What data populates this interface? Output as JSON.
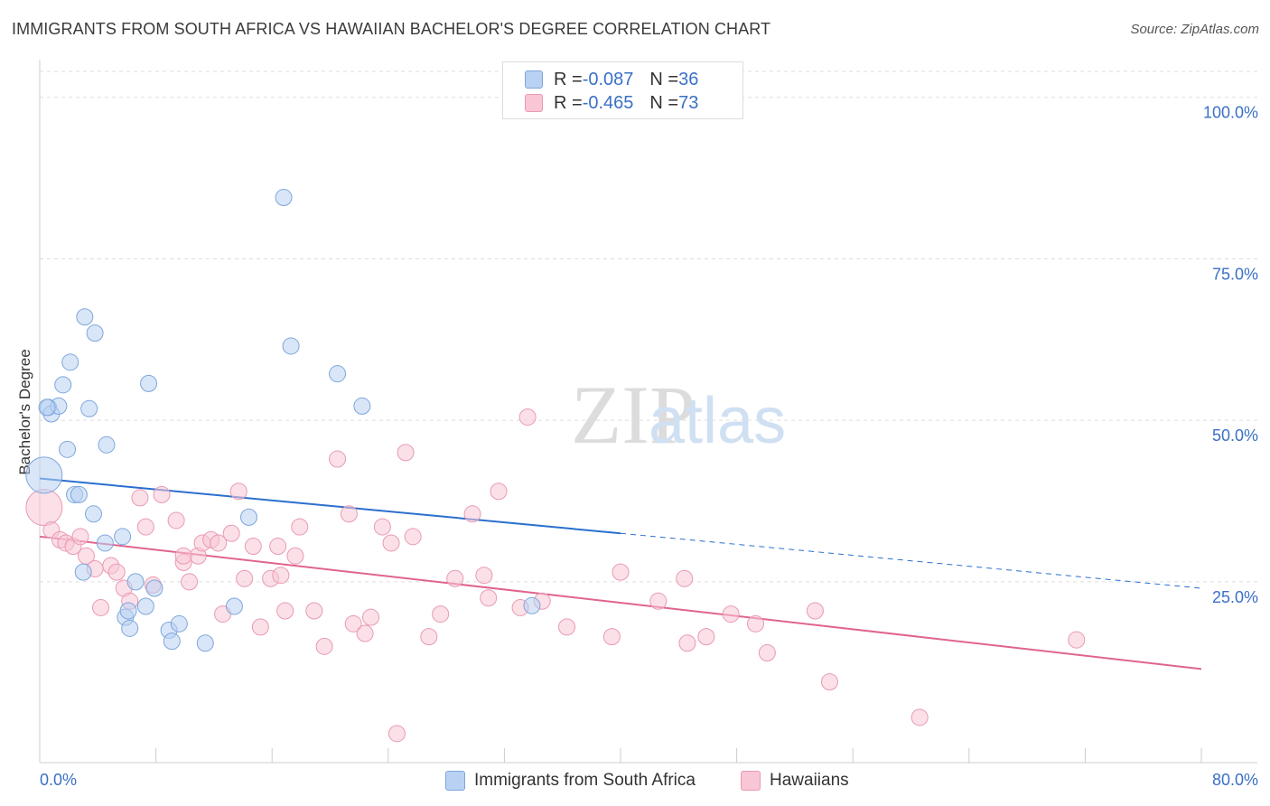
{
  "title": "IMMIGRANTS FROM SOUTH AFRICA VS HAWAIIAN BACHELOR'S DEGREE CORRELATION CHART",
  "source": "Source: ZipAtlas.com",
  "watermark": {
    "zip": "ZIP",
    "atlas": "atlas"
  },
  "colors": {
    "blue_fill": "#b9d2f3",
    "blue_stroke": "#7ea6dc",
    "blue_line": "#2b6fcf",
    "pink_fill": "#f8c6d5",
    "pink_stroke": "#e99ab3",
    "pink_line": "#e0648f",
    "axis_text": "#3a70c6",
    "grid": "#dddddd"
  },
  "legend": {
    "rows": [
      {
        "r_label": "R = ",
        "r_value": "-0.087",
        "n_label": "N = ",
        "n_value": "36"
      },
      {
        "r_label": "R = ",
        "r_value": "-0.465",
        "n_label": "N = ",
        "n_value": "73"
      }
    ]
  },
  "bottom_legend": [
    "Immigrants from South Africa",
    "Hawaiians"
  ],
  "chart_data": {
    "type": "scatter",
    "title": "IMMIGRANTS FROM SOUTH AFRICA VS HAWAIIAN BACHELOR'S DEGREE CORRELATION CHART",
    "xlabel": "",
    "ylabel": "Bachelor's Degree",
    "xlim": [
      0,
      80
    ],
    "ylim": [
      -3,
      105
    ],
    "x_tick_labels": [
      "0.0%",
      "80.0%"
    ],
    "y_ticks": [
      25,
      50,
      75,
      100
    ],
    "y_tick_labels": [
      "25.0%",
      "50.0%",
      "75.0%",
      "100.0%"
    ],
    "grid": true,
    "series": [
      {
        "name": "Immigrants from South Africa",
        "color": "blue",
        "trend": {
          "x0": 0,
          "y0": 41.0,
          "x1": 40,
          "y1": 32.5,
          "dash_to_x": 80,
          "dash_to_y": 24.0
        },
        "points": [
          [
            0.3,
            41.5,
            1
          ],
          [
            0.6,
            52.0,
            0.6
          ],
          [
            0.8,
            51.0,
            0.6
          ],
          [
            1.3,
            52.2,
            0.6
          ],
          [
            1.6,
            55.5,
            0.6
          ],
          [
            1.9,
            45.5,
            0.6
          ],
          [
            2.1,
            59.0,
            0.6
          ],
          [
            2.4,
            38.5,
            0.6
          ],
          [
            2.7,
            38.5,
            0.6
          ],
          [
            3.1,
            66.0,
            0.6
          ],
          [
            3.4,
            51.8,
            0.6
          ],
          [
            3.8,
            63.5,
            0.6
          ],
          [
            4.6,
            46.2,
            0.6
          ],
          [
            3.7,
            35.5,
            0.6
          ],
          [
            4.5,
            31.0,
            0.6
          ],
          [
            3.0,
            26.5,
            0.6
          ],
          [
            5.7,
            32.0,
            0.6
          ],
          [
            6.6,
            25.0,
            0.6
          ],
          [
            7.5,
            55.7,
            0.6
          ],
          [
            7.9,
            24.0,
            0.6
          ],
          [
            5.9,
            19.5,
            0.6
          ],
          [
            6.1,
            20.5,
            0.6
          ],
          [
            7.3,
            21.2,
            0.6
          ],
          [
            6.2,
            17.8,
            0.6
          ],
          [
            8.9,
            17.5,
            0.6
          ],
          [
            9.1,
            15.8,
            0.6
          ],
          [
            9.6,
            18.5,
            0.6
          ],
          [
            11.4,
            15.5,
            0.6
          ],
          [
            13.4,
            21.2,
            0.6
          ],
          [
            14.4,
            35.0,
            0.6
          ],
          [
            16.8,
            84.5,
            0.6
          ],
          [
            17.3,
            61.5,
            0.6
          ],
          [
            20.5,
            57.2,
            0.6
          ],
          [
            22.2,
            52.2,
            0.6
          ],
          [
            33.9,
            21.3,
            0.6
          ],
          [
            0.5,
            52.0,
            0.6
          ]
        ]
      },
      {
        "name": "Hawaiians",
        "color": "pink",
        "trend": {
          "x0": 0,
          "y0": 32.0,
          "x1": 80,
          "y1": 11.5
        },
        "points": [
          [
            0.3,
            36.5,
            1
          ],
          [
            0.8,
            33.0,
            0.6
          ],
          [
            1.4,
            31.5,
            0.6
          ],
          [
            1.8,
            31.0,
            0.6
          ],
          [
            2.3,
            30.5,
            0.6
          ],
          [
            2.8,
            32.0,
            0.6
          ],
          [
            3.2,
            29.0,
            0.6
          ],
          [
            3.8,
            27.0,
            0.6
          ],
          [
            4.2,
            21.0,
            0.6
          ],
          [
            4.9,
            27.5,
            0.6
          ],
          [
            5.3,
            26.5,
            0.6
          ],
          [
            5.8,
            24.0,
            0.6
          ],
          [
            6.2,
            22.0,
            0.6
          ],
          [
            6.9,
            38.0,
            0.6
          ],
          [
            7.3,
            33.5,
            0.6
          ],
          [
            7.8,
            24.5,
            0.6
          ],
          [
            8.4,
            38.5,
            0.6
          ],
          [
            9.4,
            34.5,
            0.6
          ],
          [
            9.9,
            28.0,
            0.6
          ],
          [
            10.3,
            25.0,
            0.6
          ],
          [
            10.9,
            29.0,
            0.6
          ],
          [
            11.2,
            31.0,
            0.6
          ],
          [
            11.8,
            31.5,
            0.6
          ],
          [
            12.6,
            20.0,
            0.6
          ],
          [
            13.2,
            32.5,
            0.6
          ],
          [
            13.7,
            39.0,
            0.6
          ],
          [
            14.1,
            25.5,
            0.6
          ],
          [
            14.7,
            30.5,
            0.6
          ],
          [
            15.2,
            18.0,
            0.6
          ],
          [
            15.9,
            25.5,
            0.6
          ],
          [
            16.4,
            30.5,
            0.6
          ],
          [
            16.9,
            20.5,
            0.6
          ],
          [
            17.6,
            29.0,
            0.6
          ],
          [
            17.9,
            33.5,
            0.6
          ],
          [
            18.9,
            20.5,
            0.6
          ],
          [
            19.6,
            15.0,
            0.6
          ],
          [
            20.5,
            44.0,
            0.6
          ],
          [
            21.3,
            35.5,
            0.6
          ],
          [
            21.6,
            18.5,
            0.6
          ],
          [
            22.4,
            17.0,
            0.6
          ],
          [
            22.8,
            19.5,
            0.6
          ],
          [
            23.6,
            33.5,
            0.6
          ],
          [
            24.2,
            31.0,
            0.6
          ],
          [
            24.6,
            1.5,
            0.6
          ],
          [
            25.2,
            45.0,
            0.6
          ],
          [
            25.7,
            32.0,
            0.6
          ],
          [
            26.8,
            16.5,
            0.6
          ],
          [
            27.6,
            20.0,
            0.6
          ],
          [
            28.6,
            25.5,
            0.6
          ],
          [
            29.8,
            35.5,
            0.6
          ],
          [
            30.6,
            26.0,
            0.6
          ],
          [
            30.9,
            22.5,
            0.6
          ],
          [
            31.6,
            39.0,
            0.6
          ],
          [
            33.1,
            21.0,
            0.6
          ],
          [
            33.6,
            50.5,
            0.6
          ],
          [
            34.6,
            22.0,
            0.6
          ],
          [
            36.3,
            18.0,
            0.6
          ],
          [
            39.4,
            16.5,
            0.6
          ],
          [
            40.0,
            26.5,
            0.6
          ],
          [
            42.6,
            22.0,
            0.6
          ],
          [
            44.4,
            25.5,
            0.6
          ],
          [
            44.6,
            15.5,
            0.6
          ],
          [
            45.9,
            16.5,
            0.6
          ],
          [
            47.6,
            20.0,
            0.6
          ],
          [
            49.3,
            18.5,
            0.6
          ],
          [
            50.1,
            14.0,
            0.6
          ],
          [
            53.4,
            20.5,
            0.6
          ],
          [
            54.4,
            9.5,
            0.6
          ],
          [
            60.6,
            4.0,
            0.6
          ],
          [
            71.4,
            16.0,
            0.6
          ],
          [
            9.9,
            29.0,
            0.6
          ],
          [
            12.3,
            31.0,
            0.6
          ],
          [
            16.6,
            26.0,
            0.6
          ]
        ]
      }
    ]
  }
}
